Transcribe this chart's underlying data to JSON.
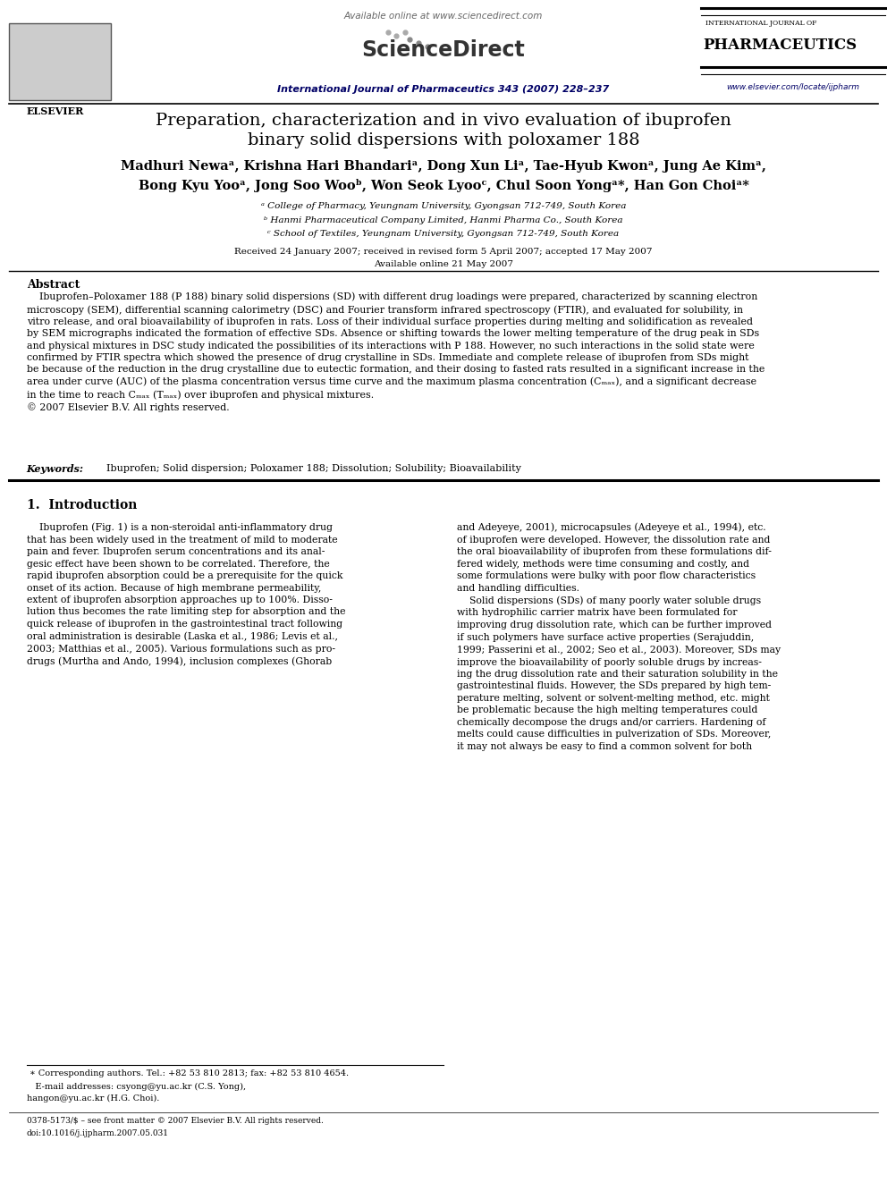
{
  "bg_color": "#ffffff",
  "title_line1": "Preparation, characterization and in vivo evaluation of ibuprofen",
  "title_line2": "binary solid dispersions with poloxamer 188",
  "authors_line1": "Madhuri Newaᵃ, Krishna Hari Bhandariᵃ, Dong Xun Liᵃ, Tae-Hyub Kwonᵃ, Jung Ae Kimᵃ,",
  "authors_line2": "Bong Kyu Yooᵃ, Jong Soo Wooᵇ, Won Seok Lyooᶜ, Chul Soon Yongᵃ*, Han Gon Choiᵃ*",
  "affil_a": "ᵃ College of Pharmacy, Yeungnam University, Gyongsan 712-749, South Korea",
  "affil_b": "ᵇ Hanmi Pharmaceutical Company Limited, Hanmi Pharma Co., South Korea",
  "affil_c": "ᶜ School of Textiles, Yeungnam University, Gyongsan 712-749, South Korea",
  "dates": "Received 24 January 2007; received in revised form 5 April 2007; accepted 17 May 2007",
  "online": "Available online 21 May 2007",
  "abstract_title": "Abstract",
  "keywords_label": "Keywords:",
  "keywords": "  Ibuprofen; Solid dispersion; Poloxamer 188; Dissolution; Solubility; Bioavailability",
  "intro_title": "1.  Introduction",
  "footnote1": " ∗ Corresponding authors. Tel.: +82 53 810 2813; fax: +82 53 810 4654.",
  "footnote2": "   E-mail addresses: csyong@yu.ac.kr (C.S. Yong),",
  "footnote3": "hangon@yu.ac.kr (H.G. Choi).",
  "footnote4": "0378-5173/$ – see front matter © 2007 Elsevier B.V. All rights reserved.",
  "footnote5": "doi:10.1016/j.ijpharm.2007.05.031",
  "journal_line": "International Journal of Pharmaceutics 343 (2007) 228–237",
  "available_online": "Available online at www.sciencedirect.com",
  "journal_name_top": "INTERNATIONAL JOURNAL OF",
  "journal_name_bold": "PHARMACEUTICS",
  "elsevier_text": "ELSEVIER",
  "url_text": "www.elsevier.com/locate/ijpharm"
}
